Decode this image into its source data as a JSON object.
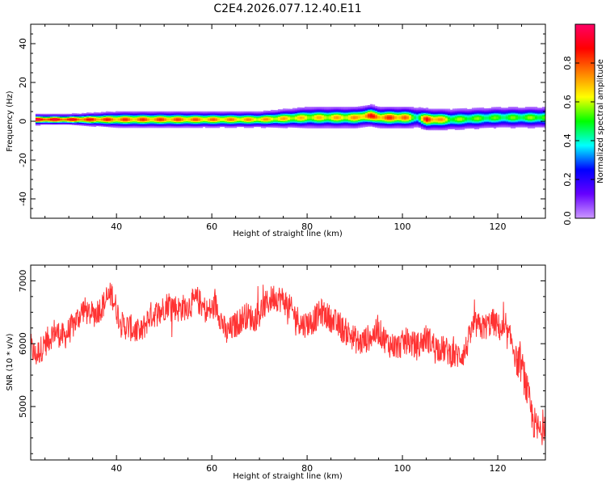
{
  "figure": {
    "title": "C2E4.2026.077.12.40.E11"
  },
  "chart_data": [
    {
      "type": "heatmap",
      "title": "",
      "xlabel": "Height of straight line (km)",
      "ylabel": "Frequency (Hz)",
      "xlim": [
        22,
        130
      ],
      "ylim": [
        -50,
        50
      ],
      "xticks": [
        40,
        60,
        80,
        100,
        120
      ],
      "yticks": [
        -40,
        -20,
        0,
        20,
        40
      ],
      "grid": false,
      "colorbar": {
        "label": "Normalized spectral amplitude",
        "range": [
          0.0,
          1.0
        ],
        "ticks": [
          "0.0",
          "0.2",
          "0.4",
          "0.6",
          "0.8"
        ],
        "colormap": [
          "#cc99ff",
          "#6600ff",
          "#0000ff",
          "#00ffff",
          "#00ff00",
          "#ffff00",
          "#ff7f00",
          "#ff0000",
          "#ff0066"
        ]
      },
      "ridge": {
        "x": [
          23,
          30,
          40,
          50,
          60,
          70,
          80,
          90,
          93,
          95,
          100,
          103,
          105,
          110,
          120,
          130
        ],
        "frequency": [
          1,
          1,
          1,
          1,
          1,
          1,
          2,
          2,
          3,
          2,
          2,
          2,
          1,
          1,
          2,
          2
        ],
        "peak_amplitude": [
          1.0,
          0.95,
          0.85,
          0.85,
          0.8,
          0.75,
          0.7,
          0.75,
          0.9,
          0.85,
          0.85,
          0.5,
          0.95,
          0.6,
          0.55,
          0.6
        ],
        "halfwidth": [
          2,
          2,
          3,
          3,
          3,
          3,
          4,
          4,
          4,
          4,
          4,
          4,
          4,
          4,
          4,
          4
        ]
      }
    },
    {
      "type": "line",
      "title": "",
      "xlabel": "Height of straight line (km)",
      "ylabel": "SNR (10 * v/v)",
      "xlim": [
        22,
        130
      ],
      "ylim": [
        4150,
        7250
      ],
      "xticks": [
        40,
        60,
        80,
        100,
        120
      ],
      "yticks": [
        5000,
        6000,
        7000
      ],
      "grid": false,
      "color": "#ff3333",
      "series": [
        {
          "x": [
            22,
            23,
            25,
            27,
            29,
            31,
            33,
            35,
            37,
            39,
            41,
            43,
            45,
            47,
            49,
            51,
            53,
            55,
            57,
            59,
            61,
            63,
            65,
            67,
            69,
            71,
            73,
            75,
            77,
            79,
            81,
            83,
            85,
            87,
            89,
            91,
            93,
            95,
            97,
            99,
            101,
            103,
            105,
            107,
            109,
            111,
            113,
            115,
            117,
            119,
            121,
            123,
            124,
            125,
            126,
            127,
            128,
            129,
            130
          ],
          "values": [
            5950,
            5800,
            6000,
            6200,
            6100,
            6300,
            6550,
            6450,
            6600,
            6800,
            6300,
            6250,
            6150,
            6450,
            6500,
            6650,
            6550,
            6600,
            6700,
            6500,
            6600,
            6150,
            6300,
            6450,
            6400,
            6600,
            6750,
            6700,
            6500,
            6300,
            6350,
            6500,
            6400,
            6250,
            6150,
            6000,
            6100,
            6200,
            6000,
            5950,
            6050,
            5950,
            6100,
            5950,
            5900,
            5800,
            5850,
            6300,
            6250,
            6350,
            6200,
            6050,
            5700,
            5650,
            5300,
            4900,
            4650,
            4600,
            4800
          ],
          "noise_amplitude": 220
        }
      ]
    }
  ]
}
